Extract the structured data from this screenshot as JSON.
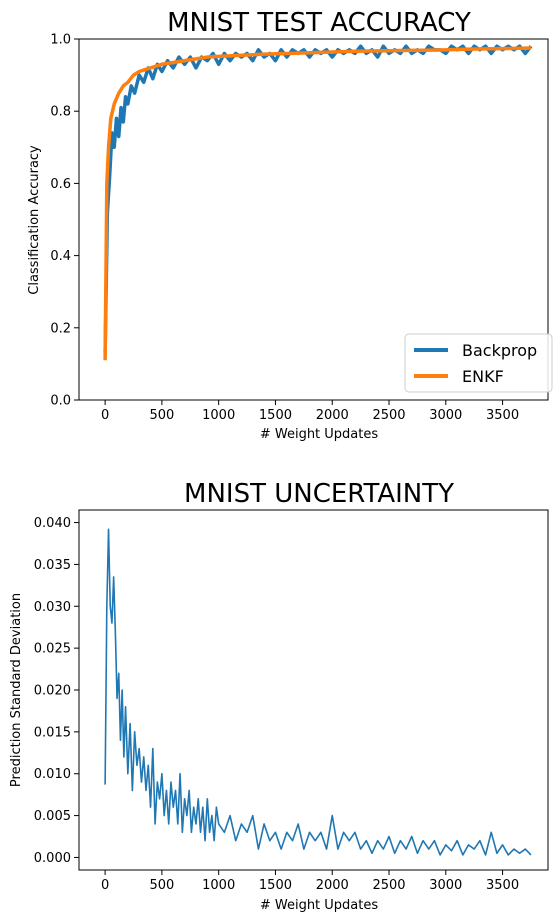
{
  "chart_data": [
    {
      "type": "line",
      "title": "MNIST TEST ACCURACY",
      "xlabel": "# Weight Updates",
      "ylabel": "Classification Accuracy",
      "xlim": [
        -230,
        3900
      ],
      "ylim": [
        0.0,
        1.0
      ],
      "xticks": [
        0,
        500,
        1000,
        1500,
        2000,
        2500,
        3000,
        3500
      ],
      "yticks": [
        0.0,
        0.2,
        0.4,
        0.6,
        0.8,
        1.0
      ],
      "ytick_labels": [
        "0.0",
        "0.2",
        "0.4",
        "0.6",
        "0.8",
        "1.0"
      ],
      "legend": {
        "placement": "lower-right",
        "entries": [
          "Backprop",
          "ENKF"
        ]
      },
      "series": [
        {
          "name": "Backprop",
          "color": "#1f77b4",
          "x": [
            0,
            20,
            40,
            60,
            80,
            100,
            120,
            140,
            160,
            180,
            200,
            230,
            260,
            300,
            340,
            380,
            420,
            460,
            500,
            550,
            600,
            650,
            700,
            750,
            800,
            850,
            900,
            950,
            1000,
            1050,
            1100,
            1150,
            1200,
            1250,
            1300,
            1350,
            1400,
            1450,
            1500,
            1550,
            1600,
            1650,
            1700,
            1750,
            1800,
            1850,
            1900,
            1950,
            2000,
            2050,
            2100,
            2150,
            2200,
            2250,
            2300,
            2350,
            2400,
            2450,
            2500,
            2550,
            2600,
            2650,
            2700,
            2750,
            2800,
            2850,
            2900,
            2950,
            3000,
            3050,
            3100,
            3150,
            3200,
            3250,
            3300,
            3350,
            3400,
            3450,
            3500,
            3550,
            3600,
            3650,
            3700,
            3750
          ],
          "y": [
            0.13,
            0.52,
            0.62,
            0.74,
            0.7,
            0.78,
            0.73,
            0.81,
            0.77,
            0.84,
            0.82,
            0.87,
            0.85,
            0.9,
            0.88,
            0.92,
            0.89,
            0.93,
            0.91,
            0.94,
            0.92,
            0.95,
            0.93,
            0.95,
            0.92,
            0.95,
            0.94,
            0.96,
            0.93,
            0.96,
            0.94,
            0.96,
            0.95,
            0.96,
            0.94,
            0.97,
            0.95,
            0.96,
            0.94,
            0.97,
            0.95,
            0.97,
            0.96,
            0.97,
            0.95,
            0.97,
            0.96,
            0.97,
            0.95,
            0.97,
            0.96,
            0.97,
            0.96,
            0.98,
            0.96,
            0.97,
            0.95,
            0.98,
            0.96,
            0.97,
            0.96,
            0.98,
            0.96,
            0.97,
            0.96,
            0.98,
            0.97,
            0.97,
            0.96,
            0.98,
            0.97,
            0.98,
            0.96,
            0.98,
            0.97,
            0.98,
            0.96,
            0.98,
            0.97,
            0.98,
            0.97,
            0.98,
            0.96,
            0.98
          ]
        },
        {
          "name": "ENKF",
          "color": "#ff7f0e",
          "x": [
            0,
            15,
            30,
            50,
            80,
            120,
            160,
            200,
            250,
            300,
            350,
            400,
            450,
            500,
            600,
            700,
            800,
            900,
            1000,
            1200,
            1400,
            1600,
            1800,
            2000,
            2200,
            2400,
            2600,
            2800,
            3000,
            3200,
            3400,
            3600,
            3750
          ],
          "y": [
            0.11,
            0.6,
            0.7,
            0.78,
            0.82,
            0.85,
            0.87,
            0.88,
            0.9,
            0.91,
            0.915,
            0.92,
            0.925,
            0.93,
            0.935,
            0.94,
            0.945,
            0.95,
            0.952,
            0.955,
            0.958,
            0.96,
            0.962,
            0.964,
            0.966,
            0.967,
            0.968,
            0.969,
            0.97,
            0.972,
            0.973,
            0.974,
            0.975
          ]
        }
      ]
    },
    {
      "type": "line",
      "title": "MNIST UNCERTAINTY",
      "xlabel": "# Weight Updates",
      "ylabel": "Prediction Standard Deviation",
      "xlim": [
        -230,
        3900
      ],
      "ylim": [
        -0.0015,
        0.0415
      ],
      "xticks": [
        0,
        500,
        1000,
        1500,
        2000,
        2500,
        3000,
        3500
      ],
      "yticks": [
        0.0,
        0.005,
        0.01,
        0.015,
        0.02,
        0.025,
        0.03,
        0.035,
        0.04
      ],
      "ytick_labels": [
        "0.000",
        "0.005",
        "0.010",
        "0.015",
        "0.020",
        "0.025",
        "0.030",
        "0.035",
        "0.040"
      ],
      "series": [
        {
          "name": "",
          "color": "#1f77b4",
          "x": [
            0,
            15,
            30,
            45,
            60,
            75,
            90,
            105,
            120,
            135,
            150,
            165,
            180,
            200,
            220,
            240,
            260,
            280,
            300,
            320,
            340,
            360,
            380,
            400,
            420,
            440,
            460,
            480,
            500,
            520,
            540,
            560,
            580,
            600,
            620,
            640,
            660,
            680,
            700,
            720,
            740,
            760,
            780,
            800,
            820,
            840,
            860,
            880,
            900,
            920,
            940,
            960,
            980,
            1000,
            1050,
            1100,
            1150,
            1200,
            1250,
            1300,
            1350,
            1400,
            1450,
            1500,
            1550,
            1600,
            1650,
            1700,
            1750,
            1800,
            1850,
            1900,
            1950,
            2000,
            2050,
            2100,
            2150,
            2200,
            2250,
            2300,
            2350,
            2400,
            2450,
            2500,
            2550,
            2600,
            2650,
            2700,
            2750,
            2800,
            2850,
            2900,
            2950,
            3000,
            3050,
            3100,
            3150,
            3200,
            3250,
            3300,
            3350,
            3400,
            3450,
            3500,
            3550,
            3600,
            3650,
            3700,
            3750
          ],
          "y": [
            0.0087,
            0.03,
            0.0392,
            0.03,
            0.028,
            0.0335,
            0.027,
            0.019,
            0.022,
            0.014,
            0.02,
            0.012,
            0.018,
            0.01,
            0.016,
            0.008,
            0.015,
            0.011,
            0.013,
            0.009,
            0.012,
            0.008,
            0.011,
            0.006,
            0.013,
            0.004,
            0.009,
            0.007,
            0.01,
            0.005,
            0.008,
            0.004,
            0.009,
            0.006,
            0.008,
            0.004,
            0.01,
            0.003,
            0.007,
            0.005,
            0.008,
            0.003,
            0.006,
            0.004,
            0.007,
            0.003,
            0.006,
            0.002,
            0.007,
            0.003,
            0.005,
            0.002,
            0.006,
            0.004,
            0.003,
            0.005,
            0.002,
            0.004,
            0.003,
            0.005,
            0.001,
            0.004,
            0.002,
            0.003,
            0.001,
            0.003,
            0.002,
            0.004,
            0.001,
            0.003,
            0.002,
            0.003,
            0.001,
            0.005,
            0.001,
            0.003,
            0.002,
            0.003,
            0.001,
            0.002,
            0.0005,
            0.002,
            0.001,
            0.0025,
            0.0005,
            0.002,
            0.001,
            0.0025,
            0.0005,
            0.002,
            0.001,
            0.002,
            0.0003,
            0.0015,
            0.0008,
            0.002,
            0.0003,
            0.0015,
            0.001,
            0.002,
            0.0003,
            0.003,
            0.0005,
            0.0015,
            0.0003,
            0.001,
            0.0005,
            0.001,
            0.0003
          ]
        }
      ]
    }
  ]
}
